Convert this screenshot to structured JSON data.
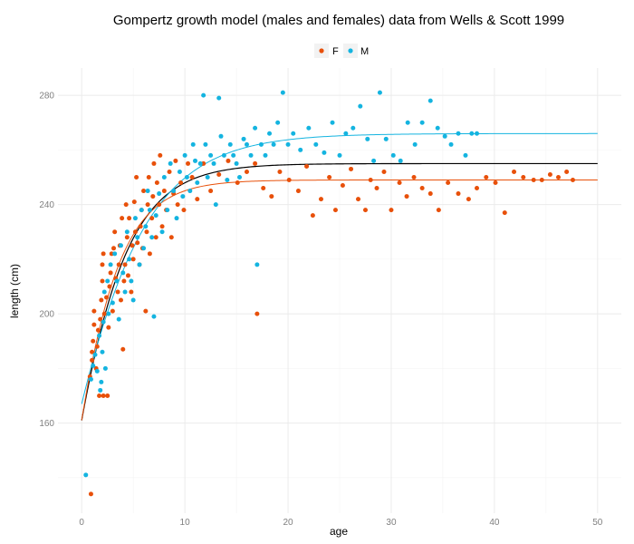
{
  "chart_data": {
    "type": "scatter",
    "title": "Gompertz growth model (males and females) data from Wells & Scott 1999",
    "xlabel": "age",
    "ylabel": "length (cm)",
    "xlim": [
      -2.3,
      52.3
    ],
    "ylim": [
      127,
      290
    ],
    "x_ticks": [
      0,
      10,
      20,
      30,
      40,
      50
    ],
    "y_ticks": [
      160,
      200,
      240,
      280
    ],
    "grid": true,
    "legend_position": "top",
    "series": [
      {
        "name": "F",
        "color": "#e8500a",
        "points": [
          [
            0.9,
            134
          ],
          [
            0.8,
            177
          ],
          [
            1.0,
            183
          ],
          [
            1.0,
            186
          ],
          [
            1.1,
            190
          ],
          [
            1.2,
            196
          ],
          [
            1.2,
            201
          ],
          [
            1.4,
            180
          ],
          [
            1.5,
            188
          ],
          [
            1.6,
            194
          ],
          [
            1.7,
            170
          ],
          [
            1.8,
            198
          ],
          [
            1.9,
            205
          ],
          [
            2.0,
            212
          ],
          [
            2.0,
            218
          ],
          [
            2.1,
            170
          ],
          [
            2.1,
            222
          ],
          [
            2.2,
            200
          ],
          [
            2.4,
            206
          ],
          [
            2.5,
            170
          ],
          [
            2.6,
            195
          ],
          [
            2.7,
            210
          ],
          [
            2.8,
            215
          ],
          [
            2.9,
            222
          ],
          [
            3.0,
            201
          ],
          [
            3.1,
            224
          ],
          [
            3.2,
            230
          ],
          [
            3.3,
            213
          ],
          [
            3.5,
            208
          ],
          [
            3.6,
            218
          ],
          [
            3.7,
            225
          ],
          [
            3.8,
            205
          ],
          [
            3.9,
            235
          ],
          [
            4.0,
            187
          ],
          [
            4.1,
            212
          ],
          [
            4.2,
            218
          ],
          [
            4.3,
            240
          ],
          [
            4.4,
            228
          ],
          [
            4.5,
            214
          ],
          [
            4.6,
            235
          ],
          [
            4.8,
            208
          ],
          [
            4.9,
            225
          ],
          [
            5.0,
            220
          ],
          [
            5.1,
            241
          ],
          [
            5.2,
            230
          ],
          [
            5.3,
            250
          ],
          [
            5.4,
            226
          ],
          [
            5.6,
            218
          ],
          [
            5.7,
            232
          ],
          [
            5.8,
            238
          ],
          [
            5.9,
            224
          ],
          [
            6.0,
            245
          ],
          [
            6.2,
            201
          ],
          [
            6.3,
            230
          ],
          [
            6.4,
            240
          ],
          [
            6.5,
            250
          ],
          [
            6.6,
            222
          ],
          [
            6.8,
            235
          ],
          [
            6.9,
            243
          ],
          [
            7.0,
            255
          ],
          [
            7.2,
            228
          ],
          [
            7.3,
            248
          ],
          [
            7.5,
            240
          ],
          [
            7.6,
            258
          ],
          [
            7.8,
            232
          ],
          [
            8.0,
            245
          ],
          [
            8.2,
            238
          ],
          [
            8.5,
            252
          ],
          [
            8.7,
            228
          ],
          [
            8.9,
            244
          ],
          [
            9.1,
            256
          ],
          [
            9.3,
            240
          ],
          [
            9.6,
            248
          ],
          [
            9.9,
            238
          ],
          [
            10.3,
            255
          ],
          [
            10.7,
            250
          ],
          [
            11.2,
            242
          ],
          [
            11.8,
            255
          ],
          [
            12.5,
            245
          ],
          [
            13.3,
            251
          ],
          [
            14.2,
            256
          ],
          [
            15.1,
            248
          ],
          [
            16.0,
            252
          ],
          [
            16.8,
            255
          ],
          [
            17.0,
            200
          ],
          [
            17.6,
            246
          ],
          [
            18.4,
            243
          ],
          [
            19.2,
            252
          ],
          [
            20.1,
            249
          ],
          [
            21.0,
            245
          ],
          [
            21.8,
            254
          ],
          [
            22.4,
            236
          ],
          [
            23.2,
            242
          ],
          [
            24.0,
            250
          ],
          [
            24.6,
            238
          ],
          [
            25.3,
            247
          ],
          [
            26.1,
            253
          ],
          [
            26.8,
            242
          ],
          [
            27.5,
            238
          ],
          [
            28.0,
            249
          ],
          [
            28.6,
            246
          ],
          [
            29.3,
            252
          ],
          [
            30.0,
            238
          ],
          [
            30.8,
            248
          ],
          [
            31.5,
            243
          ],
          [
            32.2,
            250
          ],
          [
            33.0,
            246
          ],
          [
            33.8,
            244
          ],
          [
            34.6,
            238
          ],
          [
            35.5,
            248
          ],
          [
            36.5,
            244
          ],
          [
            37.5,
            242
          ],
          [
            38.3,
            246
          ],
          [
            39.2,
            250
          ],
          [
            40.1,
            248
          ],
          [
            41.0,
            237
          ],
          [
            41.9,
            252
          ],
          [
            42.8,
            250
          ],
          [
            43.8,
            249
          ],
          [
            44.6,
            249
          ],
          [
            45.4,
            251
          ],
          [
            46.2,
            250
          ],
          [
            47.0,
            252
          ],
          [
            47.6,
            249
          ]
        ]
      },
      {
        "name": "M",
        "color": "#14b4e0",
        "points": [
          [
            0.4,
            141
          ],
          [
            0.9,
            176
          ],
          [
            1.1,
            181
          ],
          [
            1.3,
            185
          ],
          [
            1.5,
            179
          ],
          [
            1.7,
            192
          ],
          [
            1.8,
            172
          ],
          [
            1.9,
            175
          ],
          [
            2.0,
            186
          ],
          [
            2.1,
            197
          ],
          [
            2.2,
            208
          ],
          [
            2.3,
            180
          ],
          [
            2.5,
            212
          ],
          [
            2.6,
            200
          ],
          [
            2.8,
            218
          ],
          [
            3.0,
            204
          ],
          [
            3.2,
            222
          ],
          [
            3.4,
            212
          ],
          [
            3.6,
            198
          ],
          [
            3.8,
            225
          ],
          [
            4.0,
            215
          ],
          [
            4.2,
            208
          ],
          [
            4.4,
            230
          ],
          [
            4.6,
            220
          ],
          [
            4.8,
            212
          ],
          [
            5.0,
            205
          ],
          [
            5.2,
            235
          ],
          [
            5.4,
            228
          ],
          [
            5.6,
            218
          ],
          [
            5.8,
            238
          ],
          [
            6.0,
            224
          ],
          [
            6.2,
            232
          ],
          [
            6.4,
            245
          ],
          [
            6.6,
            238
          ],
          [
            6.8,
            228
          ],
          [
            7.0,
            199
          ],
          [
            7.2,
            236
          ],
          [
            7.5,
            244
          ],
          [
            7.8,
            230
          ],
          [
            8.0,
            250
          ],
          [
            8.3,
            238
          ],
          [
            8.6,
            255
          ],
          [
            8.9,
            245
          ],
          [
            9.2,
            235
          ],
          [
            9.5,
            252
          ],
          [
            9.8,
            243
          ],
          [
            10.0,
            258
          ],
          [
            10.2,
            250
          ],
          [
            10.5,
            245
          ],
          [
            10.8,
            262
          ],
          [
            11.0,
            256
          ],
          [
            11.2,
            248
          ],
          [
            11.5,
            255
          ],
          [
            11.8,
            280
          ],
          [
            12.0,
            262
          ],
          [
            12.2,
            250
          ],
          [
            12.5,
            258
          ],
          [
            12.8,
            255
          ],
          [
            13.0,
            240
          ],
          [
            13.3,
            279
          ],
          [
            13.5,
            265
          ],
          [
            13.8,
            258
          ],
          [
            14.1,
            249
          ],
          [
            14.4,
            262
          ],
          [
            14.7,
            258
          ],
          [
            15.0,
            255
          ],
          [
            15.3,
            250
          ],
          [
            15.7,
            264
          ],
          [
            16.0,
            262
          ],
          [
            16.4,
            258
          ],
          [
            16.8,
            268
          ],
          [
            17.0,
            218
          ],
          [
            17.4,
            262
          ],
          [
            17.8,
            258
          ],
          [
            18.2,
            266
          ],
          [
            18.6,
            262
          ],
          [
            19.0,
            270
          ],
          [
            19.5,
            281
          ],
          [
            20.0,
            262
          ],
          [
            20.5,
            266
          ],
          [
            21.2,
            260
          ],
          [
            22.0,
            268
          ],
          [
            22.7,
            262
          ],
          [
            23.5,
            259
          ],
          [
            24.3,
            270
          ],
          [
            25.0,
            258
          ],
          [
            25.6,
            266
          ],
          [
            26.3,
            268
          ],
          [
            27.0,
            276
          ],
          [
            27.7,
            264
          ],
          [
            28.3,
            256
          ],
          [
            28.9,
            281
          ],
          [
            29.5,
            264
          ],
          [
            30.2,
            258
          ],
          [
            30.9,
            256
          ],
          [
            31.6,
            270
          ],
          [
            32.3,
            262
          ],
          [
            33.0,
            270
          ],
          [
            33.8,
            278
          ],
          [
            34.5,
            268
          ],
          [
            35.2,
            265
          ],
          [
            35.8,
            262
          ],
          [
            36.5,
            266
          ],
          [
            37.2,
            258
          ],
          [
            37.8,
            266
          ],
          [
            38.3,
            266
          ]
        ]
      }
    ],
    "fitted_curves": [
      {
        "name": "combined",
        "color": "#000000",
        "Linf": 255,
        "L0": 161,
        "k": 0.28,
        "x": [
          0,
          50
        ]
      },
      {
        "name": "F",
        "color": "#e8500a",
        "Linf": 249,
        "L0": 161,
        "k": 0.33,
        "x": [
          0,
          50
        ]
      },
      {
        "name": "M",
        "color": "#14b4e0",
        "Linf": 266,
        "L0": 167,
        "k": 0.2,
        "x": [
          0,
          50
        ]
      }
    ]
  }
}
